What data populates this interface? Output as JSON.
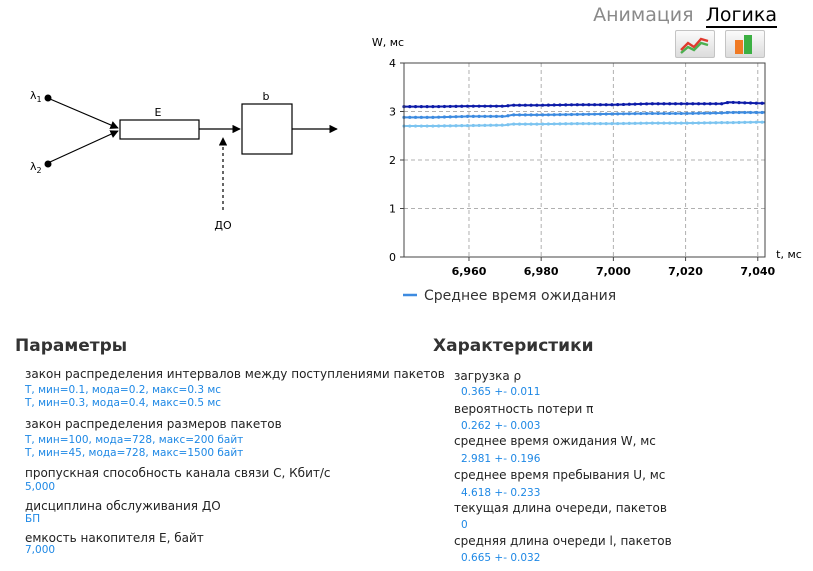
{
  "tabs": {
    "animation": "Анимация",
    "logic": "Логика"
  },
  "toolbar": {
    "line_chart_icon": "line-chart-icon",
    "bar_chart_icon": "bar-chart-icon"
  },
  "diagram": {
    "lambda1": "λ",
    "lambda1_sub": "1",
    "lambda2": "λ",
    "lambda2_sub": "2",
    "buffer_label": "E",
    "channel_label": "b",
    "discipline_label": "ДО"
  },
  "chart_data": {
    "type": "line",
    "title": "",
    "xlabel": "t, мс",
    "ylabel": "W, мс",
    "xlim": [
      6942,
      7042
    ],
    "ylim": [
      0,
      4
    ],
    "xticks": [
      6960,
      6980,
      7000,
      7020,
      7040
    ],
    "xtick_labels": [
      "6,960",
      "6,980",
      "7,000",
      "7,020",
      "7,040"
    ],
    "yticks": [
      0,
      1,
      2,
      3,
      4
    ],
    "ytick_labels": [
      "0",
      "1",
      "2",
      "3",
      "4"
    ],
    "grid": true,
    "legend": "bottom",
    "legend_label": "Среднее время ожидания",
    "legend_color": "#3d8be0",
    "x": [
      6942,
      6950,
      6960,
      6970,
      6972,
      6980,
      6990,
      7000,
      7010,
      7020,
      7030,
      7032,
      7040,
      7042
    ],
    "series": [
      {
        "color": "#0d1ba8",
        "values": [
          3.1,
          3.1,
          3.11,
          3.11,
          3.13,
          3.13,
          3.14,
          3.14,
          3.16,
          3.16,
          3.16,
          3.19,
          3.17,
          3.17
        ]
      },
      {
        "color": "#3d8be0",
        "values": [
          2.88,
          2.88,
          2.9,
          2.9,
          2.93,
          2.93,
          2.94,
          2.95,
          2.96,
          2.96,
          2.97,
          2.98,
          2.98,
          2.98
        ]
      },
      {
        "color": "#7cc4f0",
        "values": [
          2.7,
          2.7,
          2.71,
          2.72,
          2.74,
          2.74,
          2.75,
          2.75,
          2.76,
          2.76,
          2.77,
          2.77,
          2.78,
          2.78
        ]
      }
    ]
  },
  "parameters": {
    "title": "Параметры",
    "interval_law": "закон распределения интервалов между поступлениями пакетов",
    "interval_v1": "T, мин=0.1, мода=0.2, макс=0.3 мс",
    "interval_v2": "T, мин=0.3, мода=0.4, макс=0.5 мс",
    "size_law": "закон распределения размеров пакетов",
    "size_v1": "T, мин=100, мода=728, макс=200 байт",
    "size_v2": "T, мин=45, мода=728, макс=1500 байт",
    "capacity": "пропускная способность канала связи C, Кбит/с",
    "capacity_v": "5,000",
    "discipline": "дисциплина обслуживания ДО",
    "discipline_v": "БП",
    "storage": "емкость накопителя E, байт",
    "storage_v": "7,000"
  },
  "characteristics": {
    "title": "Характеристики",
    "load": "загрузка ρ",
    "load_v": "0.365  +-  0.011",
    "loss": "вероятность потери π",
    "loss_v": "0.262  +-  0.003",
    "wait": "среднее время ожидания W, мс",
    "wait_v": "2.981  +-  0.196",
    "stay": "среднее время пребывания U, мс",
    "stay_v": "4.618  +-  0.233",
    "queue_now": "текущая длина очереди, пакетов",
    "queue_now_v": "0",
    "queue_avg": "средняя длина очереди l, пакетов",
    "queue_avg_v": "0.665  +-  0.032"
  }
}
